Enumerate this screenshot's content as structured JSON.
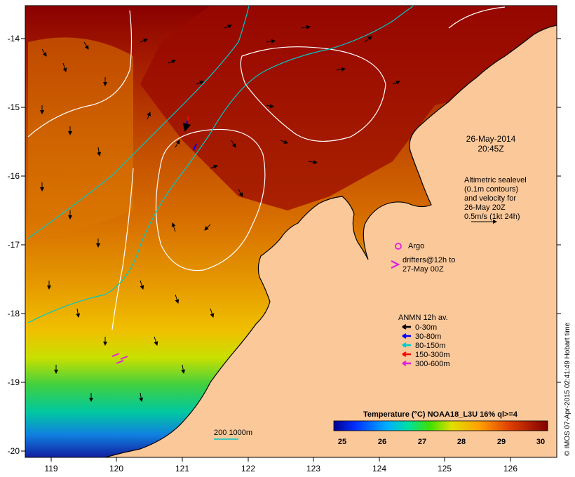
{
  "map": {
    "x_ticks": [
      "119",
      "120",
      "121",
      "122",
      "123",
      "124",
      "125",
      "126"
    ],
    "y_ticks": [
      "-14",
      "-15",
      "-16",
      "-17",
      "-18",
      "-19",
      "-20"
    ],
    "timestamp": {
      "date": "26-May-2014",
      "time": "20:45Z"
    },
    "altimetry_note": {
      "line1": "Altimetric sealevel",
      "line2": "(0.1m contours)",
      "line3": "and velocity for",
      "line4": "26-May 20Z",
      "line5": "0.5m/s (1kt 24h)"
    },
    "argo": {
      "label": "Argo",
      "color": "#e020e0"
    },
    "drifters": {
      "line1": "drifters@12h to",
      "line2": "27-May 00Z",
      "color": "#e020e0"
    },
    "anmn": {
      "title": "ANMN 12h av.",
      "items": [
        {
          "label": "0-30m",
          "color": "#000000"
        },
        {
          "label": "30-80m",
          "color": "#0000ff"
        },
        {
          "label": "80-150m",
          "color": "#00c8c8"
        },
        {
          "label": "150-300m",
          "color": "#ff0000"
        },
        {
          "label": "300-600m",
          "color": "#e020e0"
        }
      ]
    },
    "depth_legend": {
      "label": "200 1000m",
      "color": "#00c8c8"
    },
    "colorbar": {
      "title": "Temperature (°C) NOAA18_L3U 16% ql>=4",
      "ticks": [
        "25",
        "26",
        "27",
        "28",
        "29",
        "30"
      ]
    },
    "credit": "© IMOS 07-Apr-2015 02:41:49 Hobart time",
    "colors": {
      "land": "#fbc89a",
      "warm_max": "#960000",
      "contour": "#ffffff",
      "isobath": "#00c8c8"
    }
  }
}
